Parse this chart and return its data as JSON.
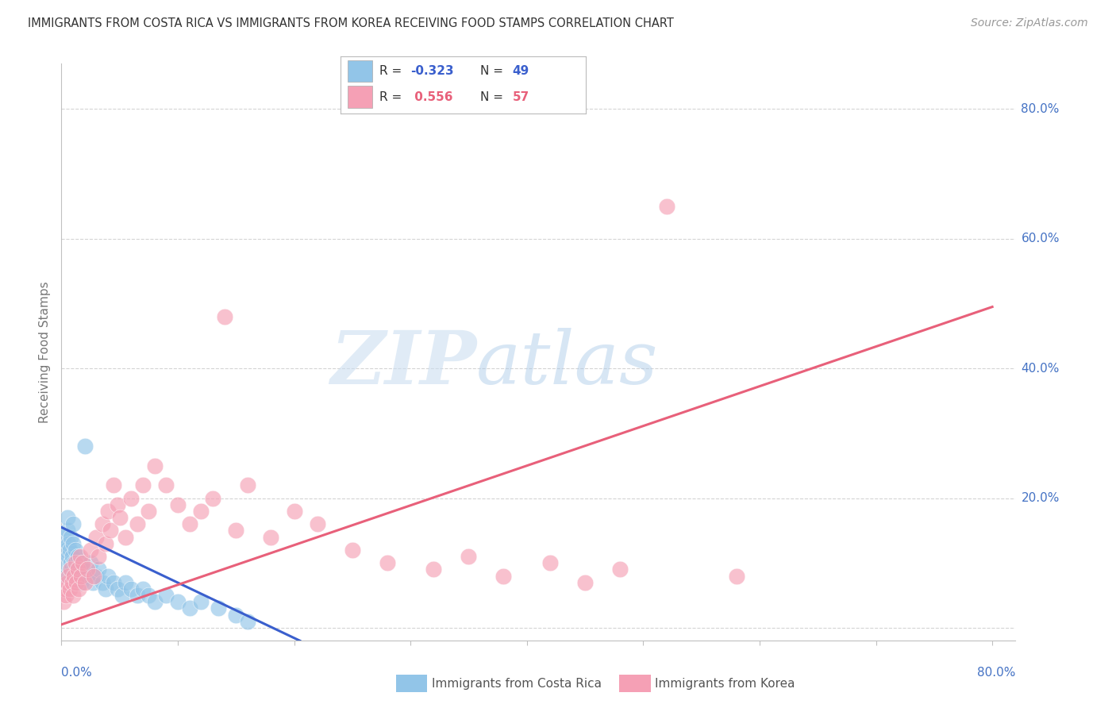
{
  "title": "IMMIGRANTS FROM COSTA RICA VS IMMIGRANTS FROM KOREA RECEIVING FOOD STAMPS CORRELATION CHART",
  "source": "Source: ZipAtlas.com",
  "ylabel": "Receiving Food Stamps",
  "xlim": [
    0.0,
    0.82
  ],
  "ylim": [
    -0.02,
    0.87
  ],
  "ytick_values": [
    0.0,
    0.2,
    0.4,
    0.6,
    0.8
  ],
  "color_blue": "#92C5E8",
  "color_pink": "#F5A0B5",
  "line_blue": "#3A5FCD",
  "line_pink": "#E8607A",
  "watermark_zip_color": "#C8DCF0",
  "watermark_atlas_color": "#A8C8E8",
  "background_color": "#FFFFFF",
  "title_fontsize": 10.5,
  "legend_r1": "-0.323",
  "legend_n1": "49",
  "legend_r2": "0.556",
  "legend_n2": "57",
  "legend_label1": "Immigrants from Costa Rica",
  "legend_label2": "Immigrants from Korea",
  "costa_rica_x": [
    0.002,
    0.003,
    0.004,
    0.004,
    0.005,
    0.005,
    0.006,
    0.006,
    0.007,
    0.007,
    0.008,
    0.008,
    0.009,
    0.009,
    0.01,
    0.01,
    0.011,
    0.012,
    0.013,
    0.014,
    0.015,
    0.016,
    0.017,
    0.018,
    0.02,
    0.022,
    0.025,
    0.027,
    0.03,
    0.032,
    0.035,
    0.038,
    0.04,
    0.045,
    0.048,
    0.052,
    0.055,
    0.06,
    0.065,
    0.07,
    0.075,
    0.08,
    0.09,
    0.1,
    0.11,
    0.12,
    0.135,
    0.15,
    0.16
  ],
  "costa_rica_y": [
    0.14,
    0.1,
    0.12,
    0.08,
    0.15,
    0.17,
    0.11,
    0.13,
    0.09,
    0.12,
    0.14,
    0.1,
    0.08,
    0.11,
    0.13,
    0.16,
    0.1,
    0.12,
    0.09,
    0.11,
    0.08,
    0.1,
    0.07,
    0.09,
    0.28,
    0.08,
    0.1,
    0.07,
    0.08,
    0.09,
    0.07,
    0.06,
    0.08,
    0.07,
    0.06,
    0.05,
    0.07,
    0.06,
    0.05,
    0.06,
    0.05,
    0.04,
    0.05,
    0.04,
    0.03,
    0.04,
    0.03,
    0.02,
    0.01
  ],
  "korea_x": [
    0.002,
    0.003,
    0.004,
    0.005,
    0.006,
    0.007,
    0.008,
    0.009,
    0.01,
    0.011,
    0.012,
    0.013,
    0.014,
    0.015,
    0.016,
    0.017,
    0.018,
    0.02,
    0.022,
    0.025,
    0.028,
    0.03,
    0.032,
    0.035,
    0.038,
    0.04,
    0.042,
    0.045,
    0.048,
    0.05,
    0.055,
    0.06,
    0.065,
    0.07,
    0.075,
    0.08,
    0.09,
    0.1,
    0.11,
    0.12,
    0.13,
    0.14,
    0.15,
    0.16,
    0.18,
    0.2,
    0.22,
    0.25,
    0.28,
    0.32,
    0.35,
    0.38,
    0.42,
    0.45,
    0.48,
    0.52,
    0.58
  ],
  "korea_y": [
    0.04,
    0.06,
    0.05,
    0.07,
    0.08,
    0.06,
    0.09,
    0.07,
    0.05,
    0.08,
    0.1,
    0.07,
    0.09,
    0.06,
    0.11,
    0.08,
    0.1,
    0.07,
    0.09,
    0.12,
    0.08,
    0.14,
    0.11,
    0.16,
    0.13,
    0.18,
    0.15,
    0.22,
    0.19,
    0.17,
    0.14,
    0.2,
    0.16,
    0.22,
    0.18,
    0.25,
    0.22,
    0.19,
    0.16,
    0.18,
    0.2,
    0.48,
    0.15,
    0.22,
    0.14,
    0.18,
    0.16,
    0.12,
    0.1,
    0.09,
    0.11,
    0.08,
    0.1,
    0.07,
    0.09,
    0.65,
    0.08
  ],
  "blue_line_x": [
    0.0,
    0.205
  ],
  "blue_line_y": [
    0.155,
    -0.02
  ],
  "pink_line_x": [
    0.0,
    0.8
  ],
  "pink_line_y": [
    0.005,
    0.495
  ]
}
